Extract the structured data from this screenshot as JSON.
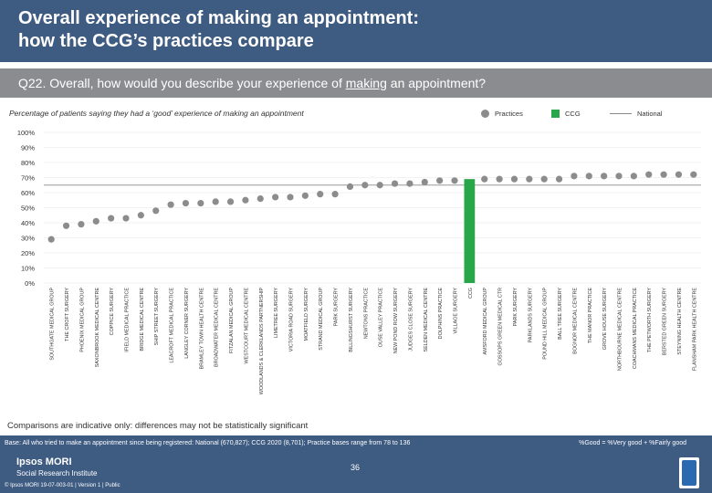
{
  "header": {
    "title_line1": "Overall experience of making an appointment:",
    "title_line2": "how the CCG’s practices compare"
  },
  "question": {
    "prefix": "Q22. Overall, how would you describe your experience of ",
    "underlined": "making",
    "suffix": " an appointment?"
  },
  "subtitle": "Percentage of patients saying they had a ‘good’ experience of making an appointment",
  "legend": {
    "practices": "Practices",
    "ccg": "CCG",
    "national": "National"
  },
  "colors": {
    "header_bg": "#3e5b82",
    "question_bg": "#8a8c90",
    "practice_dot": "#8c8c8c",
    "ccg_bar": "#2aa64a",
    "national_line": "#999999"
  },
  "note": "Comparisons are indicative only: differences may not be statistically significant",
  "footer": {
    "base": "Base: All who tried to make an appointment since being registered: National (670,827); CCG 2020 (8,701); Practice bases range from 78 to 136",
    "definition": "%Good = %Very good + %Fairly good",
    "logo_line1": "Ipsos MORI",
    "logo_line2": "Social Research Institute",
    "copyright": "© Ipsos MORI      19-07-003-01 | Version 1 | Public",
    "page_number": "36"
  },
  "chart_data": {
    "type": "scatter",
    "title": "Percentage of patients saying they had a ‘good’ experience of making an appointment",
    "ylabel": "",
    "xlabel": "",
    "ylim": [
      0,
      100
    ],
    "y_ticks": [
      "0%",
      "10%",
      "20%",
      "30%",
      "40%",
      "50%",
      "60%",
      "70%",
      "80%",
      "90%",
      "100%"
    ],
    "y_tick_values": [
      0,
      10,
      20,
      30,
      40,
      50,
      60,
      70,
      80,
      90,
      100
    ],
    "national_value": 65,
    "categories": [
      "SOUTHGATE MEDICAL GROUP",
      "THE CROFT SURGERY",
      "PHOENIX MEDICAL GROUP",
      "SAXONBROOK MEDICAL CENTRE",
      "COPPICE SURGERY",
      "IFIELD MEDICAL PRACTICE",
      "BRIDGE MEDICAL CENTRE",
      "SHIP STREET SURGERY",
      "LEACROFT MEDICAL PRACTICE",
      "LANGLEY CORNER SURGERY",
      "BRAMLEY TOWN HEALTH CENTRE",
      "BROADWATER MEDICAL CENTRE",
      "FITZALAN MEDICAL GROUP",
      "WESTCOURT MEDICAL CENTRE",
      "WOODLANDS & CLERKLANDS PARTNERSHIP",
      "LIMETREE SURGERY",
      "VICTORIA ROAD SURGERY",
      "MOATFIELD SURGERY",
      "STRAND MEDICAL GROUP",
      "PARK SURGERY",
      "BILLINGSHURST SURGERY",
      "NEWTONS PRACTICE",
      "OUSE VALLEY PRACTICE",
      "NEW POND ROW SURGERY",
      "JUDGES CLOSE SURGERY",
      "SELDEN MEDICAL CENTRE",
      "DOLPHINS PRACTICE",
      "VILLAGE SURGERY",
      "CCG",
      "AMSFORD MEDICAL GROUP",
      "GOSSOPS GREEN MEDICAL CTR",
      "PARK SURGERY",
      "PARKLANDS SURGERY",
      "POUND HILL MEDICAL GROUP",
      "BALL TREE SURGERY",
      "BOGNOR MEDICAL CENTRE",
      "THE MANOR PRACTICE",
      "GROVE HOUSE SURGERY",
      "NORTHBOURNE MEDICAL CENTRE",
      "COACHMANS MEDICAL PRACTICE",
      "THE PETWORTH SURGERY",
      "BERSTED GREEN SURGERY",
      "STEYNING HEALTH CENTRE",
      "FLANSHAM PARK HEALTH CENTRE"
    ],
    "values": [
      29,
      38,
      39,
      41,
      43,
      43,
      45,
      48,
      52,
      53,
      53,
      54,
      54,
      55,
      56,
      57,
      57,
      58,
      59,
      59,
      64,
      65,
      65,
      66,
      66,
      67,
      68,
      68,
      69,
      69,
      69,
      69,
      69,
      69,
      69,
      71,
      71,
      71,
      71,
      71,
      72,
      72,
      72,
      72
    ],
    "ccg_category": "CCG",
    "legend_position": "top-right"
  }
}
